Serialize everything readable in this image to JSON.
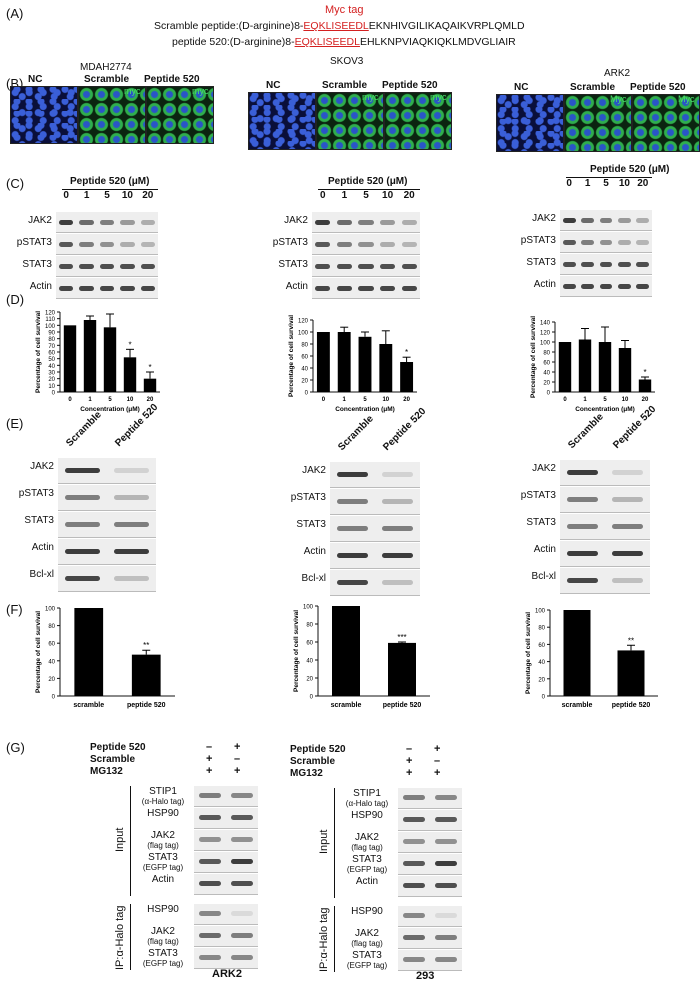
{
  "panels": {
    "A": "(A)",
    "B": "(B)",
    "C": "(C)",
    "D": "(D)",
    "E": "(E)",
    "F": "(F)",
    "G": "(G)"
  },
  "panelA": {
    "myc_tag_label": "Myc tag",
    "scramble_prefix": "Scramble peptide:(D-arginine)8-",
    "scramble_tag": "EQKLISEEDL",
    "scramble_rest": "EKNHIVGILIKAQAIKVRPLQMLD",
    "p520_prefix": "peptide 520:(D-arginine)8-",
    "p520_tag": "EQKLISEEDL",
    "p520_rest": "EHLKNPVIAQKIQKLMDVGLIAIR"
  },
  "cell_lines": [
    "MDAH2774",
    "SKOV3",
    "ARK2"
  ],
  "micro_labels": [
    "NC",
    "Scramble",
    "Peptide 520"
  ],
  "myc_label": "myc",
  "myc_label_alt": "Myc",
  "panelC": {
    "header": "Peptide 520 (μM)",
    "lanes": [
      "0",
      "1",
      "5",
      "10",
      "20"
    ],
    "rows": [
      "JAK2",
      "pSTAT3",
      "STAT3",
      "Actin"
    ]
  },
  "panelE": {
    "lanes": [
      "Scramble",
      "Peptide 520"
    ],
    "rows": [
      "JAK2",
      "pSTAT3",
      "STAT3",
      "Actin",
      "Bcl-xl"
    ]
  },
  "panelG": {
    "treat_rows": [
      "Peptide 520",
      "Scramble",
      "MG132"
    ],
    "signs": [
      [
        "–",
        "+"
      ],
      [
        "+",
        "–"
      ],
      [
        "+",
        "+"
      ]
    ],
    "input_label": "Input",
    "ip_label": "IP:α-Halo tag",
    "input_rows": [
      {
        "name": "STIP1",
        "sub": "(α-Halo tag)"
      },
      {
        "name": "HSP90",
        "sub": ""
      },
      {
        "name": "JAK2",
        "sub": "(flag tag)"
      },
      {
        "name": "STAT3",
        "sub": "(EGFP tag)"
      },
      {
        "name": "Actin",
        "sub": ""
      }
    ],
    "ip_rows": [
      {
        "name": "HSP90",
        "sub": ""
      },
      {
        "name": "JAK2",
        "sub": "(flag tag)"
      },
      {
        "name": "STAT3",
        "sub": "(EGFP tag)"
      }
    ],
    "cell_left": "ARK2",
    "cell_right": "293"
  },
  "chart_data": [
    {
      "type": "bar",
      "panel": "D",
      "cell_line": "MDAH2774",
      "categories": [
        "0",
        "1",
        "5",
        "10",
        "20"
      ],
      "values": [
        100,
        108,
        97,
        52,
        20
      ],
      "errors": [
        0,
        6,
        20,
        12,
        10
      ],
      "stars": [
        "",
        "",
        "",
        "*",
        "*"
      ],
      "ylabel": "Percentage of cell survival",
      "xlabel": "Concentration (μM)",
      "ylim": [
        0,
        120
      ],
      "yticks": [
        0,
        10,
        20,
        30,
        40,
        50,
        60,
        70,
        80,
        90,
        100,
        110,
        120
      ]
    },
    {
      "type": "bar",
      "panel": "D",
      "cell_line": "SKOV3",
      "categories": [
        "0",
        "1",
        "5",
        "10",
        "20"
      ],
      "values": [
        100,
        100,
        92,
        80,
        50
      ],
      "errors": [
        0,
        8,
        8,
        22,
        8
      ],
      "stars": [
        "",
        "",
        "",
        "",
        "*"
      ],
      "ylabel": "Percentage of cell survival",
      "xlabel": "Concentration (μM)",
      "ylim": [
        0,
        120
      ],
      "yticks": [
        0,
        20,
        40,
        60,
        80,
        100,
        120
      ]
    },
    {
      "type": "bar",
      "panel": "D",
      "cell_line": "ARK2",
      "categories": [
        "0",
        "1",
        "5",
        "10",
        "20"
      ],
      "values": [
        100,
        105,
        100,
        88,
        25
      ],
      "errors": [
        0,
        22,
        30,
        15,
        5
      ],
      "stars": [
        "",
        "",
        "",
        "",
        "*"
      ],
      "ylabel": "Percentage of cell survival",
      "xlabel": "Concentration (μM)",
      "ylim": [
        0,
        140
      ],
      "yticks": [
        0,
        20,
        40,
        60,
        80,
        100,
        120,
        140
      ]
    },
    {
      "type": "bar",
      "panel": "F",
      "cell_line": "MDAH2774",
      "categories": [
        "scramble",
        "peptide 520"
      ],
      "values": [
        100,
        47
      ],
      "errors": [
        0,
        5
      ],
      "stars": [
        "",
        "**"
      ],
      "ylabel": "Percentage of cell survival",
      "ylim": [
        0,
        100
      ],
      "yticks": [
        0,
        20,
        40,
        60,
        80,
        100
      ]
    },
    {
      "type": "bar",
      "panel": "F",
      "cell_line": "SKOV3",
      "categories": [
        "scramble",
        "peptide 520"
      ],
      "values": [
        100,
        59
      ],
      "errors": [
        0,
        1
      ],
      "stars": [
        "",
        "***"
      ],
      "ylabel": "Percentage of cell survival",
      "ylim": [
        0,
        100
      ],
      "yticks": [
        0,
        20,
        40,
        60,
        80,
        100
      ]
    },
    {
      "type": "bar",
      "panel": "F",
      "cell_line": "ARK2",
      "categories": [
        "scramble",
        "peptide 520"
      ],
      "values": [
        100,
        53
      ],
      "errors": [
        0,
        6
      ],
      "stars": [
        "",
        "**"
      ],
      "ylabel": "Percentage of cell survival",
      "ylim": [
        0,
        100
      ],
      "yticks": [
        0,
        20,
        40,
        60,
        80,
        100
      ]
    }
  ]
}
